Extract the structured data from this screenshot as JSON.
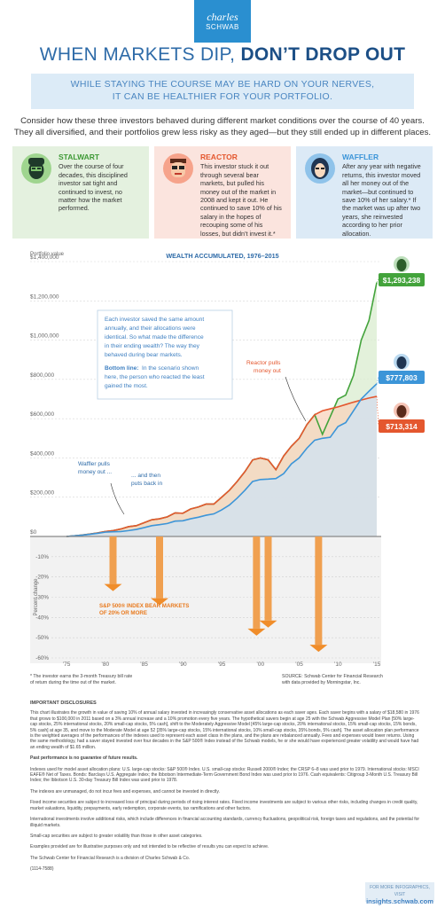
{
  "logo": {
    "line1": "charles",
    "line2": "SCHWAB"
  },
  "headline": {
    "part1": "WHEN MARKETS DIP, ",
    "part2": "DON’T DROP OUT"
  },
  "subhead": {
    "line1": "WHILE STAYING THE COURSE MAY BE HARD ON YOUR NERVES,",
    "line2": "IT CAN BE HEALTHIER FOR YOUR PORTFOLIO."
  },
  "intro": {
    "line1": "Consider how these three investors behaved during different market conditions over the course of 40 years.",
    "line2": "They all diversified, and their portfolios grew less risky as they aged—but they still ended up in different places."
  },
  "investors": [
    {
      "name": "STALWART",
      "color": "#3f9a36",
      "icon": "stalwart-face-icon",
      "text": "Over the course of four decades, this disciplined investor sat tight and continued to invest, no matter how the market performed."
    },
    {
      "name": "REACTOR",
      "color": "#e4572e",
      "icon": "reactor-face-icon",
      "text": "This investor stuck it out through several bear markets, but pulled his money out of the market in 2008 and kept it out. He continued to save 10% of his salary in the hopes of recouping some of his losses, but didn’t invest it.*"
    },
    {
      "name": "WAFFLER",
      "color": "#3c95d8",
      "icon": "waffler-face-icon",
      "text": "After any year with negative returns, this investor moved all her money out of the market—but continued to save 10% of her salary.* If the market was up after two years, she reinvested according to her prior allocation."
    }
  ],
  "chart_data": {
    "type": "line",
    "title": "WEALTH ACCUMULATED, 1976–2015",
    "ylabel": "Portfolio value",
    "ylabel_lower": "Percent change",
    "x_ticks": [
      "’75",
      "’80",
      "’85",
      "’90",
      "’95",
      "’00",
      "’05",
      "’10",
      "’15"
    ],
    "ylim": [
      0,
      1400000
    ],
    "y_ticks": [
      "$0",
      "$200,000",
      "$400,000",
      "$600,000",
      "$800,000",
      "$1,000,000",
      "$1,200,000",
      "$1,400,000"
    ],
    "lower_ylim": [
      -60,
      0
    ],
    "lower_ticks": [
      "-10%",
      "-20%",
      "-30%",
      "-40%",
      "-50%",
      "-60%"
    ],
    "x": [
      1975,
      1976,
      1977,
      1978,
      1979,
      1980,
      1981,
      1982,
      1983,
      1984,
      1985,
      1986,
      1987,
      1988,
      1989,
      1990,
      1991,
      1992,
      1993,
      1994,
      1995,
      1996,
      1997,
      1998,
      1999,
      2000,
      2001,
      2002,
      2003,
      2004,
      2005,
      2006,
      2007,
      2008,
      2009,
      2010,
      2011,
      2012,
      2013,
      2014,
      2015
    ],
    "series": [
      {
        "name": "STALWART",
        "color": "#43a33b",
        "values": [
          0,
          3000,
          7000,
          12000,
          18000,
          25000,
          30000,
          38000,
          50000,
          55000,
          70000,
          85000,
          90000,
          100000,
          120000,
          118000,
          140000,
          150000,
          165000,
          165000,
          200000,
          235000,
          280000,
          330000,
          390000,
          400000,
          390000,
          340000,
          410000,
          460000,
          500000,
          570000,
          620000,
          520000,
          610000,
          700000,
          720000,
          820000,
          1000000,
          1100000,
          1293238
        ]
      },
      {
        "name": "REACTOR",
        "color": "#e4572e",
        "values": [
          0,
          3000,
          7000,
          12000,
          18000,
          25000,
          30000,
          38000,
          50000,
          55000,
          70000,
          85000,
          90000,
          100000,
          120000,
          118000,
          140000,
          150000,
          165000,
          165000,
          200000,
          235000,
          280000,
          330000,
          390000,
          400000,
          390000,
          340000,
          410000,
          460000,
          500000,
          570000,
          620000,
          640000,
          650000,
          660000,
          672000,
          684000,
          695000,
          705000,
          713314
        ]
      },
      {
        "name": "WAFFLER",
        "color": "#3c95d8",
        "values": [
          0,
          3000,
          6500,
          11000,
          16000,
          22000,
          24000,
          25000,
          30000,
          36000,
          45000,
          55000,
          60000,
          66000,
          78000,
          80000,
          90000,
          98000,
          108000,
          115000,
          135000,
          160000,
          195000,
          235000,
          280000,
          290000,
          292000,
          295000,
          320000,
          370000,
          400000,
          450000,
          490000,
          500000,
          505000,
          560000,
          580000,
          640000,
          700000,
          740000,
          777803
        ]
      }
    ],
    "end_labels": [
      "$1,293,238",
      "$777,803",
      "$713,314"
    ],
    "bear_markets": [
      {
        "year": 1981,
        "change": -27
      },
      {
        "year": 1987,
        "change": -34
      },
      {
        "year": 1999.5,
        "change": -49
      },
      {
        "year": 2001,
        "change": -45
      },
      {
        "year": 2007.5,
        "change": -57
      }
    ],
    "bear_label": [
      "S&P 500® INDEX BEAR MARKETS",
      "OF 20% OR MORE"
    ],
    "annotations": {
      "waffler": [
        "Waffler pulls",
        "money out ..."
      ],
      "waffler2": [
        "... and then",
        "puts back in"
      ],
      "reactor": [
        "Reactor pulls",
        "money out"
      ],
      "callout": [
        "Each investor saved the same amount",
        "annually, and their allocations were",
        "identical. So what made the difference",
        "in their ending wealth? The way they",
        "behaved during bear markets."
      ],
      "callout_bold": "Bottom line:",
      "callout2": [
        " In the scenario shown",
        "here, the person who reacted the least",
        "gained the most."
      ]
    }
  },
  "footnote_left": [
    "* The investor earns the 3-month Treasury bill rate",
    "of return during the time out of the market."
  ],
  "footnote_right": [
    "SOURCE: Schwab Center for Financial Research",
    "with data provided by Morningstar, Inc."
  ],
  "disclosures": {
    "heading": "IMPORTANT DISCLOSURES",
    "p1": "This chart illustrates the growth in value of saving 10% of annual salary invested in increasingly conservative asset allocations as each saver ages. Each saver begins with a salary of $18,580 in 1976 that grows to $100,000 in 2011 based on a 3% annual increase and a 10% promotion every five years. The hypothetical savers begin at age 25 with the Schwab Aggressive Model Plan [50% large-cap stocks, 25% international stocks, 20% small-cap stocks, 5% cash], shift to the Moderately Aggressive Model [45% large-cap stocks, 20% international stocks, 15% small-cap stocks, 15% bonds, 5% cash] at age 35, and move to the Moderate Model at age 52 [35% large-cap stocks, 15% international stocks, 10% small-cap stocks, 35% bonds, 5% cash]. The asset allocation plan performance is the weighted averages of the performances of the indexes used to represent each asset class in the plans, and the plans are rebalanced annually. Fees and expenses would lower returns. Using the same methodology, had a saver stayed invested over four decades in the S&P 500® Index instead of the Schwab models, he or she would have experienced greater volatility and would have had an ending wealth of $1.65 million.",
    "p2": "Past performance is no guarantee of future results.",
    "p3": "Indexes used for model asset allocation plans: U.S. large-cap stocks: S&P 500® Index. U.S. small-cap stocks: Russell 2000® Index; the CRSP 6–8 was used prior to 1979. International stocks: MSCI EAFE® Net of Taxes. Bonds: Barclays U.S. Aggregate Index; the Ibbotson Intermediate-Term Government Bond Index was used prior to 1976. Cash equivalents: Citigroup 3-Month U.S. Treasury Bill Index; the Ibbotson U.S. 30-day Treasury Bill Index was used prior to 1978.",
    "p4": "The indexes are unmanaged, do not incur fees and expenses, and cannot be invested in directly.",
    "p5": "Fixed income securities are subject to increased loss of principal during periods of rising interest rates. Fixed income investments are subject to various other risks, including changes in credit quality, market valuations, liquidity, prepayments, early redemption, corporate events, tax ramifications and other factors.",
    "p6": "International investments involve additional risks, which include differences in financial accounting standards, currency fluctuations, geopolitical risk, foreign taxes and regulations, and the potential for illiquid markets.",
    "p7": "Small-cap securities are subject to greater volatility than those in other asset categories.",
    "p8": "Examples provided are for illustrative purposes only and not intended to be reflective of results you can expect to achieve.",
    "p9": "The Schwab Center for Financial Research is a division of Charles Schwab & Co.",
    "p10": "(1114-7588)"
  },
  "more": {
    "line1": "FOR MORE INFOGRAPHICS, VISIT",
    "url": "insights.schwab.com"
  }
}
